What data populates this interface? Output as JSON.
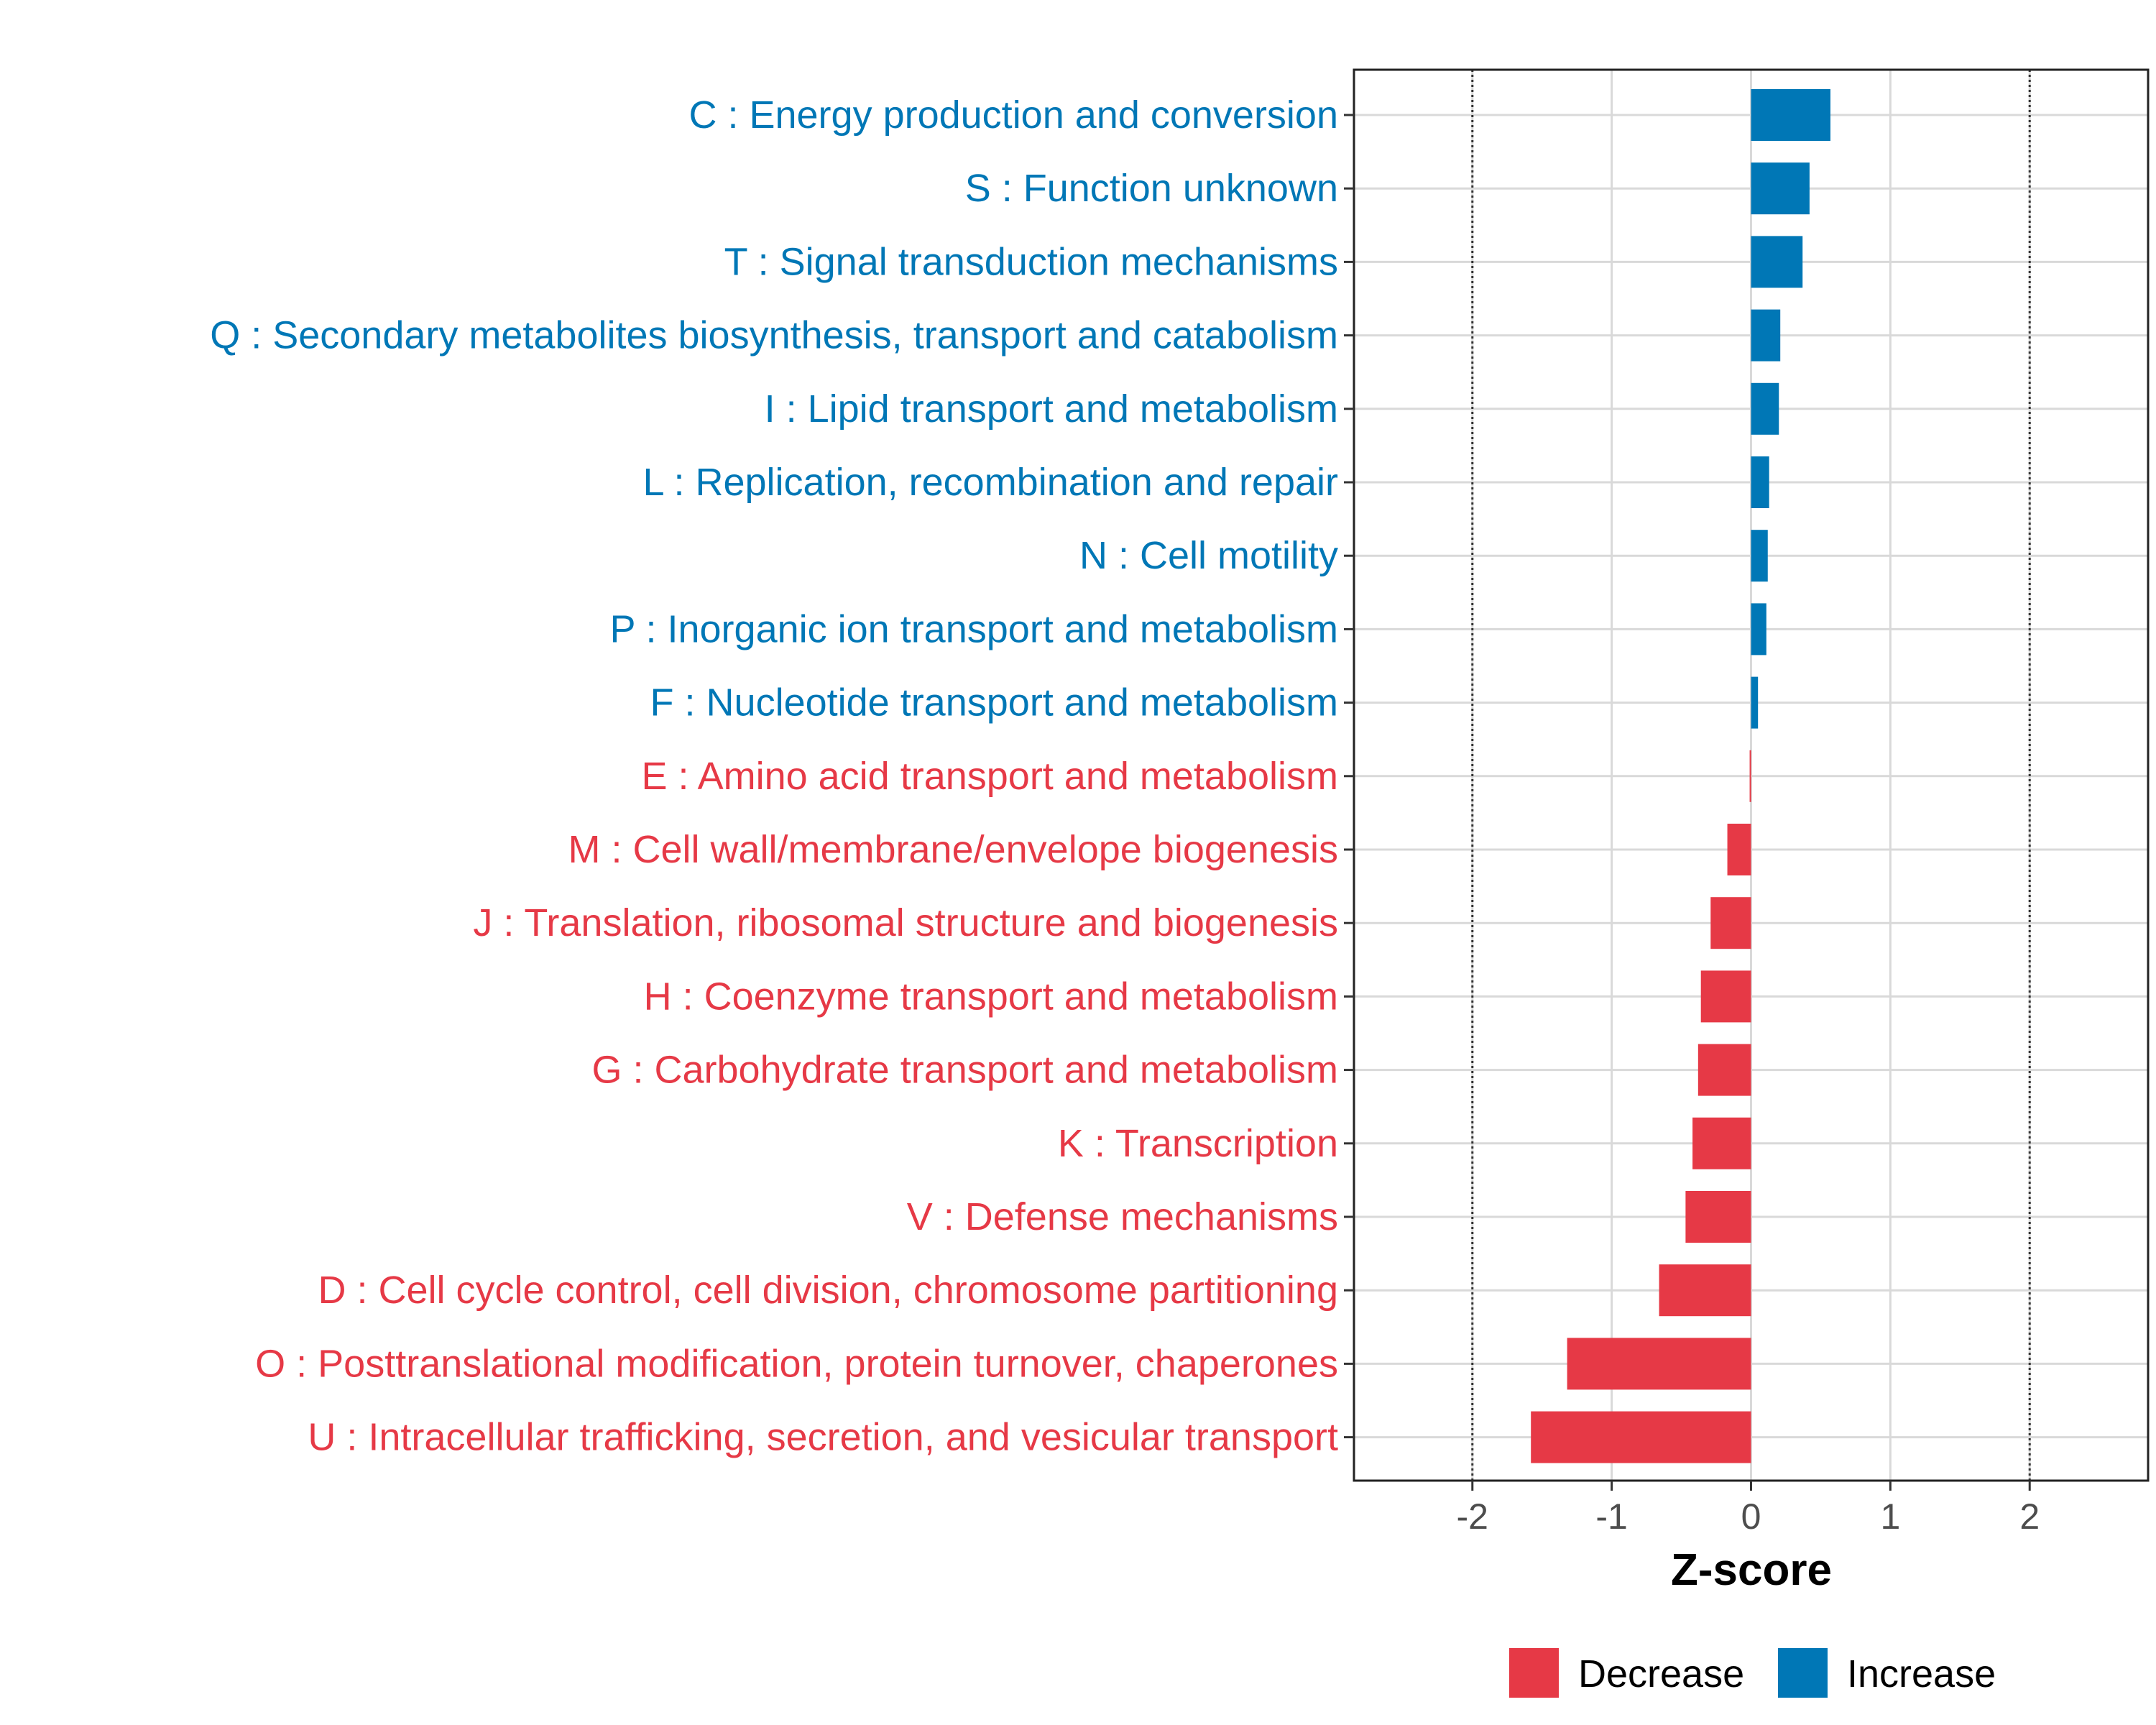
{
  "chart_data": {
    "type": "bar",
    "orientation": "horizontal",
    "xlabel": "Z-score",
    "xlim": [
      -2.85,
      2.85
    ],
    "xticks": [
      -2,
      -1,
      0,
      1,
      2
    ],
    "xtick_labels": [
      "-2",
      "-1",
      "0",
      "1",
      "2"
    ],
    "reference_lines": [
      -2,
      2
    ],
    "grid": true,
    "legend_position": "bottom",
    "colors": {
      "Decrease": "#E63946",
      "Increase": "#0077B6"
    },
    "legend": [
      {
        "label": "Decrease",
        "color": "#E63946"
      },
      {
        "label": "Increase",
        "color": "#0077B6"
      }
    ],
    "categories": [
      "C : Energy production and conversion",
      "S : Function unknown",
      "T : Signal transduction mechanisms",
      "Q : Secondary metabolites biosynthesis, transport and catabolism",
      "I : Lipid transport and metabolism",
      "L : Replication, recombination and repair",
      "N : Cell motility",
      "P : Inorganic ion transport and metabolism",
      "F : Nucleotide transport and metabolism",
      "E : Amino acid transport and metabolism",
      "M : Cell wall/membrane/envelope biogenesis",
      "J : Translation, ribosomal structure and biogenesis",
      "H : Coenzyme transport and metabolism",
      "G : Carbohydrate transport and metabolism",
      "K : Transcription",
      "V : Defense mechanisms",
      "D : Cell cycle control, cell division, chromosome partitioning",
      "O : Posttranslational modification, protein turnover, chaperones",
      "U : Intracellular trafficking, secretion, and vesicular transport"
    ],
    "values": [
      0.57,
      0.42,
      0.37,
      0.21,
      0.2,
      0.13,
      0.12,
      0.11,
      0.05,
      -0.01,
      -0.17,
      -0.29,
      -0.36,
      -0.38,
      -0.42,
      -0.47,
      -0.66,
      -1.32,
      -1.58
    ],
    "groups": [
      "Increase",
      "Increase",
      "Increase",
      "Increase",
      "Increase",
      "Increase",
      "Increase",
      "Increase",
      "Increase",
      "Decrease",
      "Decrease",
      "Decrease",
      "Decrease",
      "Decrease",
      "Decrease",
      "Decrease",
      "Decrease",
      "Decrease",
      "Decrease"
    ]
  }
}
